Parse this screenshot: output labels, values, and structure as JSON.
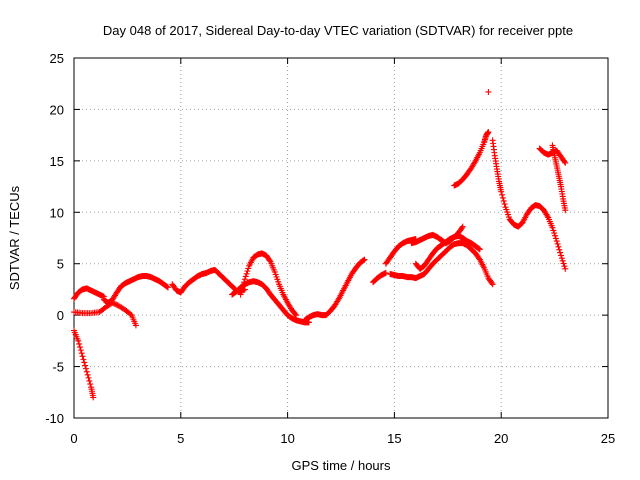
{
  "chart_data": {
    "type": "scatter",
    "title": "Day 048 of 2017, Sidereal Day-to-day VTEC variation (SDTVAR) for receiver ppte",
    "xlabel": "GPS time / hours",
    "ylabel": "SDTVAR / TECUs",
    "xlim": [
      0,
      25
    ],
    "ylim": [
      -10,
      25
    ],
    "xticks": [
      "0",
      "5",
      "10",
      "15",
      "20",
      "25"
    ],
    "yticks": [
      "-10",
      "-5",
      "0",
      "5",
      "10",
      "15",
      "20",
      "25"
    ],
    "grid": true,
    "marker": "plus",
    "color": "#ff0000",
    "series": [
      {
        "x": [
          0.0,
          0.2,
          0.4,
          0.6,
          0.8,
          0.9
        ],
        "y": [
          -1.5,
          -2.5,
          -4.0,
          -5.5,
          -7.0,
          -8.0
        ]
      },
      {
        "x": [
          0.0,
          0.2,
          0.4,
          0.6,
          0.8,
          1.0,
          1.2,
          1.4
        ],
        "y": [
          1.6,
          2.2,
          2.5,
          2.6,
          2.4,
          2.2,
          2.0,
          1.8
        ]
      },
      {
        "x": [
          0.0,
          0.4,
          0.8,
          1.2,
          1.5,
          1.8,
          2.1,
          2.4,
          2.7,
          2.9
        ],
        "y": [
          0.3,
          0.2,
          0.2,
          0.3,
          0.8,
          1.2,
          0.9,
          0.5,
          0.0,
          -1.0
        ]
      },
      {
        "x": [
          1.4,
          1.6,
          1.8,
          2.0,
          2.2,
          2.4,
          2.6,
          2.8,
          3.0,
          3.2,
          3.4,
          3.6,
          3.8,
          4.0,
          4.2,
          4.4
        ],
        "y": [
          1.5,
          1.2,
          1.5,
          2.2,
          2.8,
          3.1,
          3.3,
          3.5,
          3.7,
          3.8,
          3.8,
          3.7,
          3.5,
          3.3,
          3.0,
          2.7
        ]
      },
      {
        "x": [
          4.6,
          4.8,
          5.0,
          5.2,
          5.4,
          5.6,
          5.8,
          6.0,
          6.2,
          6.4,
          6.6,
          6.8,
          7.0,
          7.2,
          7.4,
          7.6,
          7.8,
          8.0
        ],
        "y": [
          3.0,
          2.4,
          2.2,
          2.8,
          3.2,
          3.5,
          3.8,
          4.0,
          4.1,
          4.3,
          4.4,
          4.0,
          3.6,
          3.2,
          2.8,
          2.4,
          2.3,
          2.5
        ]
      },
      {
        "x": [
          7.4,
          7.6,
          7.8,
          8.0,
          8.2,
          8.4,
          8.6,
          8.8,
          9.0,
          9.2,
          9.4,
          9.6,
          9.8,
          10.0,
          10.2,
          10.4,
          10.6,
          10.8,
          11.0
        ],
        "y": [
          2.0,
          2.3,
          2.7,
          3.0,
          3.2,
          3.3,
          3.2,
          3.0,
          2.6,
          2.0,
          1.5,
          1.0,
          0.5,
          0.0,
          -0.3,
          -0.5,
          -0.6,
          -0.7,
          -0.7
        ]
      },
      {
        "x": [
          7.8,
          8.0,
          8.2,
          8.4,
          8.6,
          8.8,
          9.0,
          9.2,
          9.4,
          9.6,
          9.8,
          10.0,
          10.2,
          10.4
        ],
        "y": [
          2.0,
          3.5,
          4.8,
          5.6,
          5.9,
          6.0,
          5.8,
          5.2,
          4.2,
          3.0,
          2.0,
          1.2,
          0.5,
          0.0
        ]
      },
      {
        "x": [
          10.8,
          11.0,
          11.2,
          11.4,
          11.6,
          11.8,
          12.0,
          12.2,
          12.4,
          12.6,
          12.8,
          13.0,
          13.2,
          13.4,
          13.6
        ],
        "y": [
          -0.5,
          -0.2,
          0.0,
          0.1,
          0.0,
          0.0,
          0.4,
          0.9,
          1.6,
          2.4,
          3.2,
          4.0,
          4.6,
          5.1,
          5.4
        ]
      },
      {
        "x": [
          14.0,
          14.2,
          14.4,
          14.6
        ],
        "y": [
          3.2,
          3.6,
          3.9,
          4.1
        ]
      },
      {
        "x": [
          14.6,
          14.8,
          15.0,
          15.2,
          15.4,
          15.6,
          15.8,
          16.0
        ],
        "y": [
          5.0,
          5.6,
          6.2,
          6.7,
          7.0,
          7.2,
          7.3,
          7.4
        ]
      },
      {
        "x": [
          14.8,
          15.0,
          15.2,
          15.4,
          15.6,
          15.8,
          16.0,
          16.2,
          16.4,
          16.6,
          16.8,
          17.0,
          17.2,
          17.4,
          17.6,
          17.8,
          18.0,
          18.2,
          18.4,
          18.6,
          18.8,
          19.0,
          19.2,
          19.4,
          19.6
        ],
        "y": [
          4.0,
          3.9,
          3.8,
          3.8,
          3.7,
          3.7,
          3.6,
          3.8,
          4.0,
          4.5,
          5.0,
          5.4,
          5.8,
          6.2,
          6.6,
          6.9,
          7.0,
          7.0,
          6.8,
          6.4,
          6.0,
          5.4,
          4.6,
          3.6,
          3.0
        ]
      },
      {
        "x": [
          15.8,
          16.0,
          16.2,
          16.4,
          16.6,
          16.8,
          17.0,
          17.2,
          17.4,
          17.6,
          17.8,
          18.0,
          18.2
        ],
        "y": [
          7.0,
          7.1,
          7.3,
          7.5,
          7.7,
          7.8,
          7.6,
          7.3,
          7.0,
          7.2,
          7.6,
          8.0,
          8.6
        ]
      },
      {
        "x": [
          16.0,
          16.2,
          16.4,
          16.6,
          16.8,
          17.0,
          17.2,
          17.4,
          17.6,
          17.8,
          18.0,
          18.2,
          18.4,
          18.6,
          18.8,
          19.0
        ],
        "y": [
          5.0,
          4.5,
          4.8,
          5.4,
          6.0,
          6.5,
          6.8,
          7.1,
          7.4,
          7.6,
          7.7,
          7.5,
          7.2,
          7.0,
          6.7,
          6.4
        ]
      },
      {
        "x": [
          17.8,
          18.0,
          18.2,
          18.4,
          18.6,
          18.8,
          19.0,
          19.2,
          19.3,
          19.4
        ],
        "y": [
          12.6,
          12.8,
          13.2,
          13.7,
          14.3,
          15.0,
          15.8,
          16.8,
          17.5,
          17.8
        ]
      },
      {
        "x": [
          19.4
        ],
        "y": [
          21.7
        ]
      },
      {
        "x": [
          19.6,
          19.7,
          19.8,
          19.9,
          20.0,
          20.2,
          20.4,
          20.6,
          20.8,
          21.0,
          21.2,
          21.4,
          21.6,
          21.8,
          22.0,
          22.2,
          22.4,
          22.6,
          22.8,
          23.0
        ],
        "y": [
          17.0,
          15.5,
          14.2,
          13.0,
          12.0,
          10.5,
          9.3,
          8.8,
          8.6,
          9.0,
          9.8,
          10.4,
          10.7,
          10.6,
          10.2,
          9.5,
          8.5,
          7.2,
          5.8,
          4.5
        ]
      },
      {
        "x": [
          21.8,
          22.0,
          22.2,
          22.4,
          22.6,
          22.8,
          23.0
        ],
        "y": [
          16.2,
          15.8,
          15.6,
          15.8,
          16.0,
          15.4,
          14.8
        ]
      },
      {
        "x": [
          22.4,
          22.5,
          22.6,
          22.7,
          22.8,
          22.9,
          23.0
        ],
        "y": [
          16.5,
          15.5,
          14.5,
          13.5,
          12.5,
          11.3,
          10.2
        ]
      }
    ]
  }
}
